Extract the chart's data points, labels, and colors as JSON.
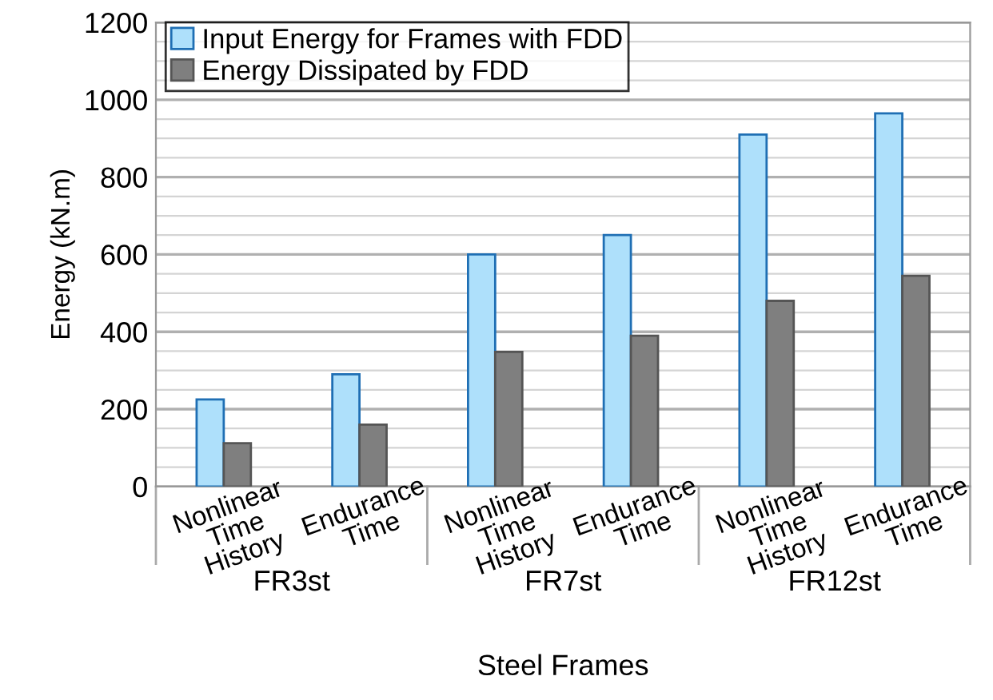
{
  "chart_data": {
    "type": "bar",
    "xlabel": "Steel Frames",
    "ylabel": "Energy (kN.m)",
    "categories": [
      "Nonlinear\nTime\nHistory",
      "Endurance\nTime",
      "Nonlinear\nTime\nHistory",
      "Endurance\nTime",
      "Nonlinear\nTime\nHistory",
      "Endurance\nTime"
    ],
    "series": [
      {
        "name": "Input Energy for Frames with FDD",
        "color": "#aee0fb",
        "values": [
          225,
          290,
          600,
          650,
          910,
          965
        ]
      },
      {
        "name": "Energy Dissipated by FDD",
        "color": "#7f7f7f",
        "values": [
          112,
          160,
          348,
          390,
          480,
          545
        ]
      }
    ],
    "annotations": [
      "FR3st",
      "FR7st",
      "FR12st"
    ],
    "ylim": [
      0,
      1200
    ],
    "yticks": [
      0,
      200,
      400,
      600,
      800,
      1000,
      1200
    ],
    "grid": "y",
    "legend": "top left"
  }
}
